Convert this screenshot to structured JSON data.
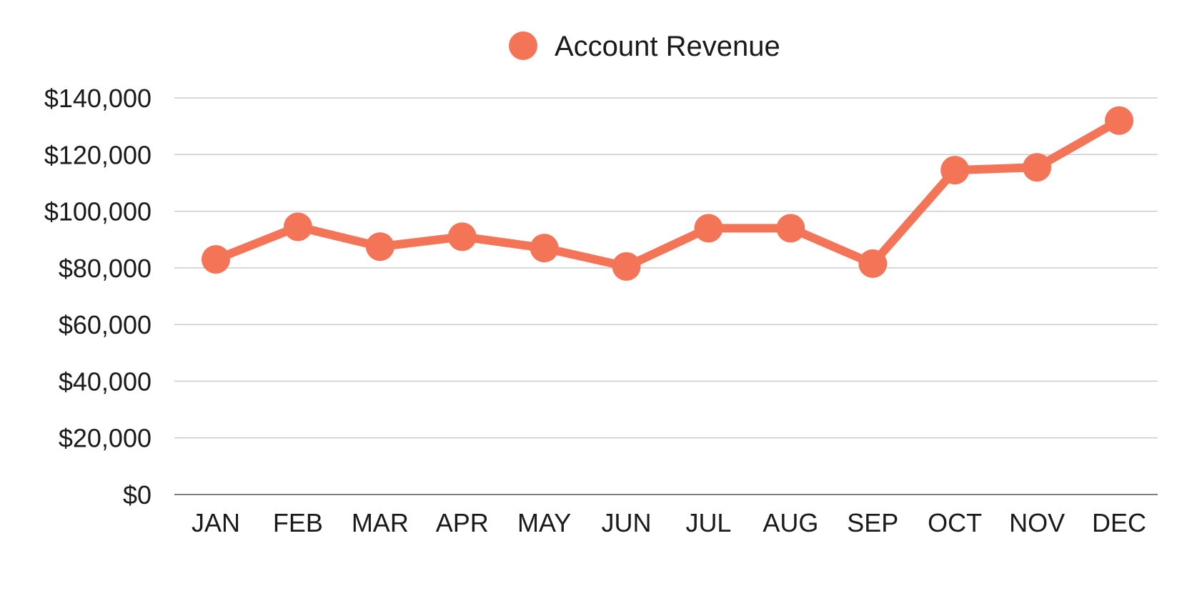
{
  "chart_data": {
    "type": "line",
    "title": "",
    "xlabel": "",
    "ylabel": "",
    "categories": [
      "JAN",
      "FEB",
      "MAR",
      "APR",
      "MAY",
      "JUN",
      "JUL",
      "AUG",
      "SEP",
      "OCT",
      "NOV",
      "DEC"
    ],
    "series": [
      {
        "name": "Account Revenue",
        "color": "#F47458",
        "values": [
          83000,
          94500,
          87500,
          91000,
          87000,
          80500,
          94000,
          94000,
          81500,
          114500,
          115500,
          132000
        ]
      }
    ],
    "ylim": [
      0,
      140000
    ],
    "yticks": [
      0,
      20000,
      40000,
      60000,
      80000,
      100000,
      120000,
      140000
    ],
    "ytick_labels": [
      "$0",
      "$20,000",
      "$40,000",
      "$60,000",
      "$80,000",
      "$100,000",
      "$120,000",
      "$140,000"
    ],
    "grid": true,
    "legend_position": "top-center"
  }
}
